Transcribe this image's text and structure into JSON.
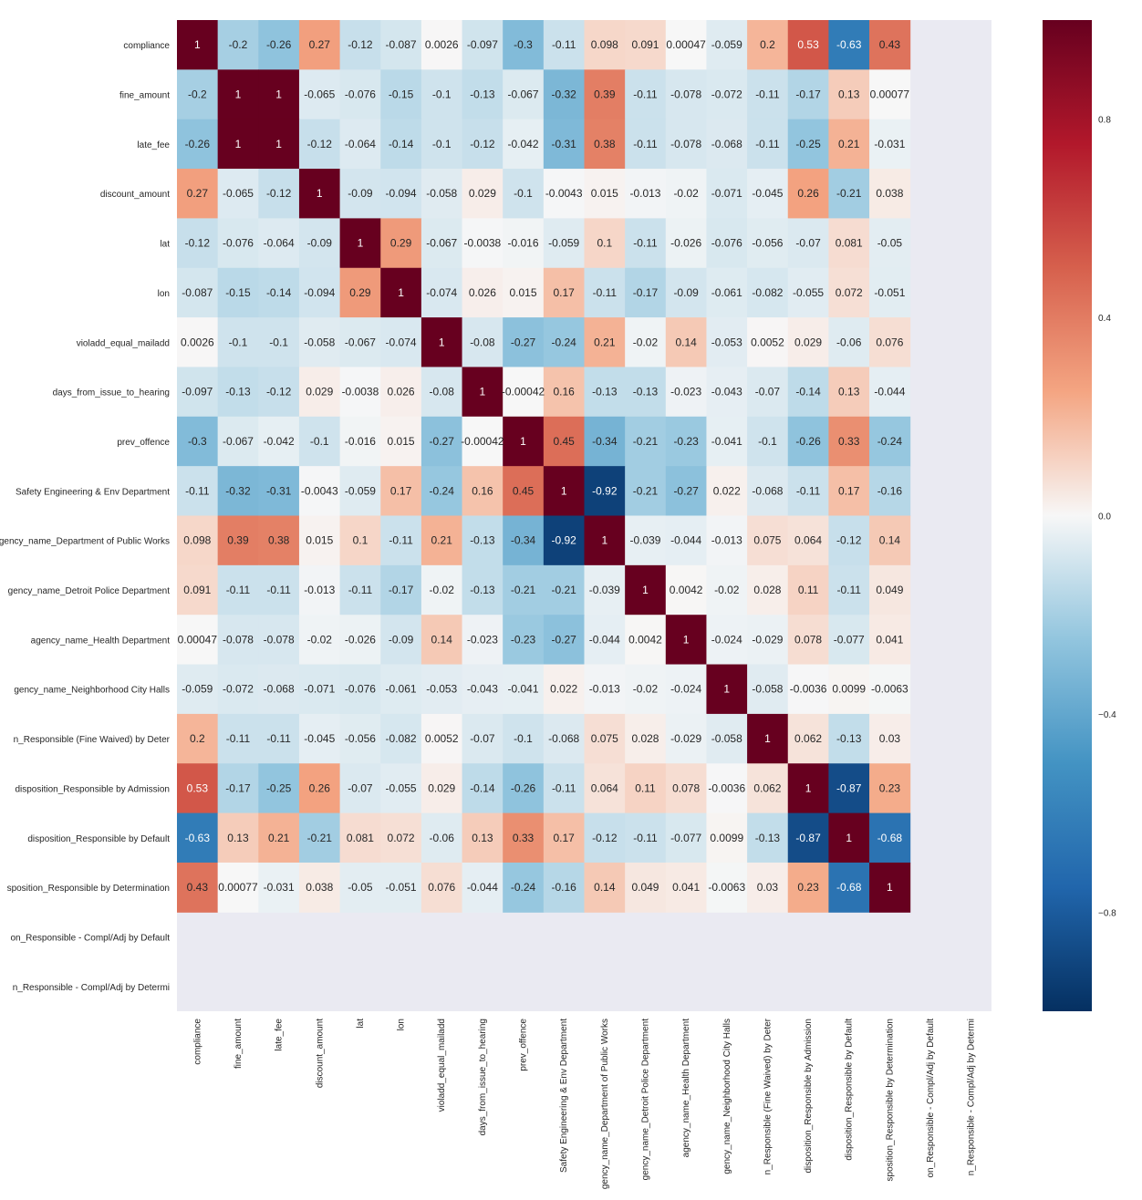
{
  "chart_data": {
    "type": "heatmap",
    "title": "",
    "xlabel": "",
    "ylabel": "",
    "row_labels": [
      "compliance",
      "fine_amount",
      "late_fee",
      "discount_amount",
      "lat",
      "lon",
      "violadd_equal_mailadd",
      "days_from_issue_to_hearing",
      "prev_offence",
      "Safety Engineering & Env Department",
      "gency_name_Department of Public Works",
      "gency_name_Detroit Police Department",
      "agency_name_Health Department",
      "gency_name_Neighborhood City Halls",
      "n_Responsible (Fine Waived) by Deter",
      "disposition_Responsible by Admission",
      "disposition_Responsible by Default",
      "sposition_Responsible by Determination",
      "on_Responsible - Compl/Adj by Default",
      "n_Responsible - Compl/Adj by Determi"
    ],
    "col_labels": [
      "compliance",
      "fine_amount",
      "late_fee",
      "discount_amount",
      "lat",
      "lon",
      "violadd_equal_mailadd",
      "days_from_issue_to_hearing",
      "prev_offence",
      "Safety Engineering & Env Department",
      "gency_name_Department of Public Works",
      "gency_name_Detroit Police Department",
      "agency_name_Health Department",
      "gency_name_Neighborhood City Halls",
      "n_Responsible (Fine Waived) by Deter",
      "disposition_Responsible by Admission",
      "disposition_Responsible by Default",
      "sposition_Responsible by Determination",
      "on_Responsible - Compl/Adj by Default",
      "n_Responsible - Compl/Adj by Determi"
    ],
    "values": [
      [
        1,
        -0.2,
        -0.26,
        0.27,
        -0.12,
        -0.087,
        0.0026,
        -0.097,
        -0.3,
        -0.11,
        0.098,
        0.091,
        0.00047,
        -0.059,
        0.2,
        0.53,
        -0.63,
        0.43,
        null,
        null
      ],
      [
        -0.2,
        1,
        1,
        -0.065,
        -0.076,
        -0.15,
        -0.1,
        -0.13,
        -0.067,
        -0.32,
        0.39,
        -0.11,
        -0.078,
        -0.072,
        -0.11,
        -0.17,
        0.13,
        0.00077,
        null,
        null
      ],
      [
        -0.26,
        1,
        1,
        -0.12,
        -0.064,
        -0.14,
        -0.1,
        -0.12,
        -0.042,
        -0.31,
        0.38,
        -0.11,
        -0.078,
        -0.068,
        -0.11,
        -0.25,
        0.21,
        -0.031,
        null,
        null
      ],
      [
        0.27,
        -0.065,
        -0.12,
        1,
        -0.09,
        -0.094,
        -0.058,
        0.029,
        -0.1,
        -0.0043,
        0.015,
        -0.013,
        -0.02,
        -0.071,
        -0.045,
        0.26,
        -0.21,
        0.038,
        null,
        null
      ],
      [
        -0.12,
        -0.076,
        -0.064,
        -0.09,
        1,
        0.29,
        -0.067,
        -0.0038,
        -0.016,
        -0.059,
        0.1,
        -0.11,
        -0.026,
        -0.076,
        -0.056,
        -0.07,
        0.081,
        -0.05,
        null,
        null
      ],
      [
        -0.087,
        -0.15,
        -0.14,
        -0.094,
        0.29,
        1,
        -0.074,
        0.026,
        0.015,
        0.17,
        -0.11,
        -0.17,
        -0.09,
        -0.061,
        -0.082,
        -0.055,
        0.072,
        -0.051,
        null,
        null
      ],
      [
        0.0026,
        -0.1,
        -0.1,
        -0.058,
        -0.067,
        -0.074,
        1,
        -0.08,
        -0.27,
        -0.24,
        0.21,
        -0.02,
        0.14,
        -0.053,
        0.0052,
        0.029,
        -0.06,
        0.076,
        null,
        null
      ],
      [
        -0.097,
        -0.13,
        -0.12,
        0.029,
        -0.0038,
        0.026,
        -0.08,
        1,
        -0.00042,
        0.16,
        -0.13,
        -0.13,
        -0.023,
        -0.043,
        -0.07,
        -0.14,
        0.13,
        -0.044,
        null,
        null
      ],
      [
        -0.3,
        -0.067,
        -0.042,
        -0.1,
        -0.016,
        0.015,
        -0.27,
        -0.00042,
        1,
        0.45,
        -0.34,
        -0.21,
        -0.23,
        -0.041,
        -0.1,
        -0.26,
        0.33,
        -0.24,
        null,
        null
      ],
      [
        -0.11,
        -0.32,
        -0.31,
        -0.0043,
        -0.059,
        0.17,
        -0.24,
        0.16,
        0.45,
        1,
        -0.92,
        -0.21,
        -0.27,
        0.022,
        -0.068,
        -0.11,
        0.17,
        -0.16,
        null,
        null
      ],
      [
        0.098,
        0.39,
        0.38,
        0.015,
        0.1,
        -0.11,
        0.21,
        -0.13,
        -0.34,
        -0.92,
        1,
        -0.039,
        -0.044,
        -0.013,
        0.075,
        0.064,
        -0.12,
        0.14,
        null,
        null
      ],
      [
        0.091,
        -0.11,
        -0.11,
        -0.013,
        -0.11,
        -0.17,
        -0.02,
        -0.13,
        -0.21,
        -0.21,
        -0.039,
        1,
        0.0042,
        -0.02,
        0.028,
        0.11,
        -0.11,
        0.049,
        null,
        null
      ],
      [
        0.00047,
        -0.078,
        -0.078,
        -0.02,
        -0.026,
        -0.09,
        0.14,
        -0.023,
        -0.23,
        -0.27,
        -0.044,
        0.0042,
        1,
        -0.024,
        -0.029,
        0.078,
        -0.077,
        0.041,
        null,
        null
      ],
      [
        -0.059,
        -0.072,
        -0.068,
        -0.071,
        -0.076,
        -0.061,
        -0.053,
        -0.043,
        -0.041,
        0.022,
        -0.013,
        -0.02,
        -0.024,
        1,
        -0.058,
        -0.0036,
        0.0099,
        -0.0063,
        null,
        null
      ],
      [
        0.2,
        -0.11,
        -0.11,
        -0.045,
        -0.056,
        -0.082,
        0.0052,
        -0.07,
        -0.1,
        -0.068,
        0.075,
        0.028,
        -0.029,
        -0.058,
        1,
        0.062,
        -0.13,
        0.03,
        null,
        null
      ],
      [
        0.53,
        -0.17,
        -0.25,
        0.26,
        -0.07,
        -0.055,
        0.029,
        -0.14,
        -0.26,
        -0.11,
        0.064,
        0.11,
        0.078,
        -0.0036,
        0.062,
        1,
        -0.87,
        0.23,
        null,
        null
      ],
      [
        -0.63,
        0.13,
        0.21,
        -0.21,
        0.081,
        0.072,
        -0.06,
        0.13,
        0.33,
        0.17,
        -0.12,
        -0.11,
        -0.077,
        0.0099,
        -0.13,
        -0.87,
        1,
        -0.68,
        null,
        null
      ],
      [
        0.43,
        0.00077,
        -0.031,
        0.038,
        -0.05,
        -0.051,
        0.076,
        -0.044,
        -0.24,
        -0.16,
        0.14,
        0.049,
        0.041,
        -0.0063,
        0.03,
        0.23,
        -0.68,
        1,
        null,
        null
      ],
      [
        null,
        null,
        null,
        null,
        null,
        null,
        null,
        null,
        null,
        null,
        null,
        null,
        null,
        null,
        null,
        null,
        null,
        null,
        null,
        null
      ],
      [
        null,
        null,
        null,
        null,
        null,
        null,
        null,
        null,
        null,
        null,
        null,
        null,
        null,
        null,
        null,
        null,
        null,
        null,
        null,
        null
      ]
    ],
    "cell_labels": [
      [
        "1",
        "-0.2",
        "-0.26",
        "0.27",
        "-0.12",
        "-0.087",
        "0.0026",
        "-0.097",
        "-0.3",
        "-0.11",
        "0.098",
        "0.091",
        "0.00047",
        "-0.059",
        "0.2",
        "0.53",
        "-0.63",
        "0.43"
      ],
      [
        "-0.2",
        "1",
        "1",
        "-0.065",
        "-0.076",
        "-0.15",
        "-0.1",
        "-0.13",
        "-0.067",
        "-0.32",
        "0.39",
        "-0.11",
        "-0.078",
        "-0.072",
        "-0.11",
        "-0.17",
        "0.13",
        "0.00077"
      ],
      [
        "-0.26",
        "1",
        "1",
        "-0.12",
        "-0.064",
        "-0.14",
        "-0.1",
        "-0.12",
        "-0.042",
        "-0.31",
        "0.38",
        "-0.11",
        "-0.078",
        "-0.068",
        "-0.11",
        "-0.25",
        "0.21",
        "-0.031"
      ],
      [
        "0.27",
        "-0.065",
        "-0.12",
        "1",
        "-0.09",
        "-0.094",
        "-0.058",
        "0.029",
        "-0.1",
        "-0.0043",
        "0.015",
        "-0.013",
        "-0.02",
        "-0.071",
        "-0.045",
        "0.26",
        "-0.21",
        "0.038"
      ],
      [
        "-0.12",
        "-0.076",
        "-0.064",
        "-0.09",
        "1",
        "0.29",
        "-0.067",
        "-0.0038",
        "-0.016",
        "-0.059",
        "0.1",
        "-0.11",
        "-0.026",
        "-0.076",
        "-0.056",
        "-0.07",
        "0.081",
        "-0.05"
      ],
      [
        "-0.087",
        "-0.15",
        "-0.14",
        "-0.094",
        "0.29",
        "1",
        "-0.074",
        "0.026",
        "0.015",
        "0.17",
        "-0.11",
        "-0.17",
        "-0.09",
        "-0.061",
        "-0.082",
        "-0.055",
        "0.072",
        "-0.051"
      ],
      [
        "0.0026",
        "-0.1",
        "-0.1",
        "-0.058",
        "-0.067",
        "-0.074",
        "1",
        "-0.08",
        "-0.27",
        "-0.24",
        "0.21",
        "-0.02",
        "0.14",
        "-0.053",
        "0.0052",
        "0.029",
        "-0.06",
        "0.076"
      ],
      [
        "-0.097",
        "-0.13",
        "-0.12",
        "0.029",
        "-0.0038",
        "0.026",
        "-0.08",
        "1",
        "-0.00042",
        "0.16",
        "-0.13",
        "-0.13",
        "-0.023",
        "-0.043",
        "-0.07",
        "-0.14",
        "0.13",
        "-0.044"
      ],
      [
        "-0.3",
        "-0.067",
        "-0.042",
        "-0.1",
        "-0.016",
        "0.015",
        "-0.27",
        "-0.00042",
        "1",
        "0.45",
        "-0.34",
        "-0.21",
        "-0.23",
        "-0.041",
        "-0.1",
        "-0.26",
        "0.33",
        "-0.24"
      ],
      [
        "-0.11",
        "-0.32",
        "-0.31",
        "-0.0043",
        "-0.059",
        "0.17",
        "-0.24",
        "0.16",
        "0.45",
        "1",
        "-0.92",
        "-0.21",
        "-0.27",
        "0.022",
        "-0.068",
        "-0.11",
        "0.17",
        "-0.16"
      ],
      [
        "0.098",
        "0.39",
        "0.38",
        "0.015",
        "0.1",
        "-0.11",
        "0.21",
        "-0.13",
        "-0.34",
        "-0.92",
        "1",
        "-0.039",
        "-0.044",
        "-0.013",
        "0.075",
        "0.064",
        "-0.12",
        "0.14"
      ],
      [
        "0.091",
        "-0.11",
        "-0.11",
        "-0.013",
        "-0.11",
        "-0.17",
        "-0.02",
        "-0.13",
        "-0.21",
        "-0.21",
        "-0.039",
        "1",
        "0.0042",
        "-0.02",
        "0.028",
        "0.11",
        "-0.11",
        "0.049"
      ],
      [
        "0.00047",
        "-0.078",
        "-0.078",
        "-0.02",
        "-0.026",
        "-0.09",
        "0.14",
        "-0.023",
        "-0.23",
        "-0.27",
        "-0.044",
        "0.0042",
        "1",
        "-0.024",
        "-0.029",
        "0.078",
        "-0.077",
        "0.041"
      ],
      [
        "-0.059",
        "-0.072",
        "-0.068",
        "-0.071",
        "-0.076",
        "-0.061",
        "-0.053",
        "-0.043",
        "-0.041",
        "0.022",
        "-0.013",
        "-0.02",
        "-0.024",
        "1",
        "-0.058",
        "-0.0036",
        "0.0099",
        "-0.0063"
      ],
      [
        "0.2",
        "-0.11",
        "-0.11",
        "-0.045",
        "-0.056",
        "-0.082",
        "0.0052",
        "-0.07",
        "-0.1",
        "-0.068",
        "0.075",
        "0.028",
        "-0.029",
        "-0.058",
        "1",
        "0.062",
        "-0.13",
        "0.03"
      ],
      [
        "0.53",
        "-0.17",
        "-0.25",
        "0.26",
        "-0.07",
        "-0.055",
        "0.029",
        "-0.14",
        "-0.26",
        "-0.11",
        "0.064",
        "0.11",
        "0.078",
        "-0.0036",
        "0.062",
        "1",
        "-0.87",
        "0.23"
      ],
      [
        "-0.63",
        "0.13",
        "0.21",
        "-0.21",
        "0.081",
        "0.072",
        "-0.06",
        "0.13",
        "0.33",
        "0.17",
        "-0.12",
        "-0.11",
        "-0.077",
        "0.0099",
        "-0.13",
        "-0.87",
        "1",
        "-0.68"
      ],
      [
        "0.43",
        "0.00077",
        "-0.031",
        "0.038",
        "-0.05",
        "-0.051",
        "0.076",
        "-0.044",
        "-0.24",
        "-0.16",
        "0.14",
        "0.049",
        "0.041",
        "-0.0063",
        "0.03",
        "0.23",
        "-0.68",
        "1"
      ],
      [],
      []
    ],
    "vmin": -1,
    "vmax": 1,
    "colormap": "RdBu_r",
    "colorbar_ticks": [
      0.8,
      0.4,
      0.0,
      -0.4,
      -0.8
    ],
    "colorbar_tick_labels": [
      "0.8",
      "0.4",
      "0.0",
      "−0.4",
      "−0.8"
    ],
    "missing_color": "#EAEAF2",
    "grid": false,
    "legend": "colorbar right"
  }
}
